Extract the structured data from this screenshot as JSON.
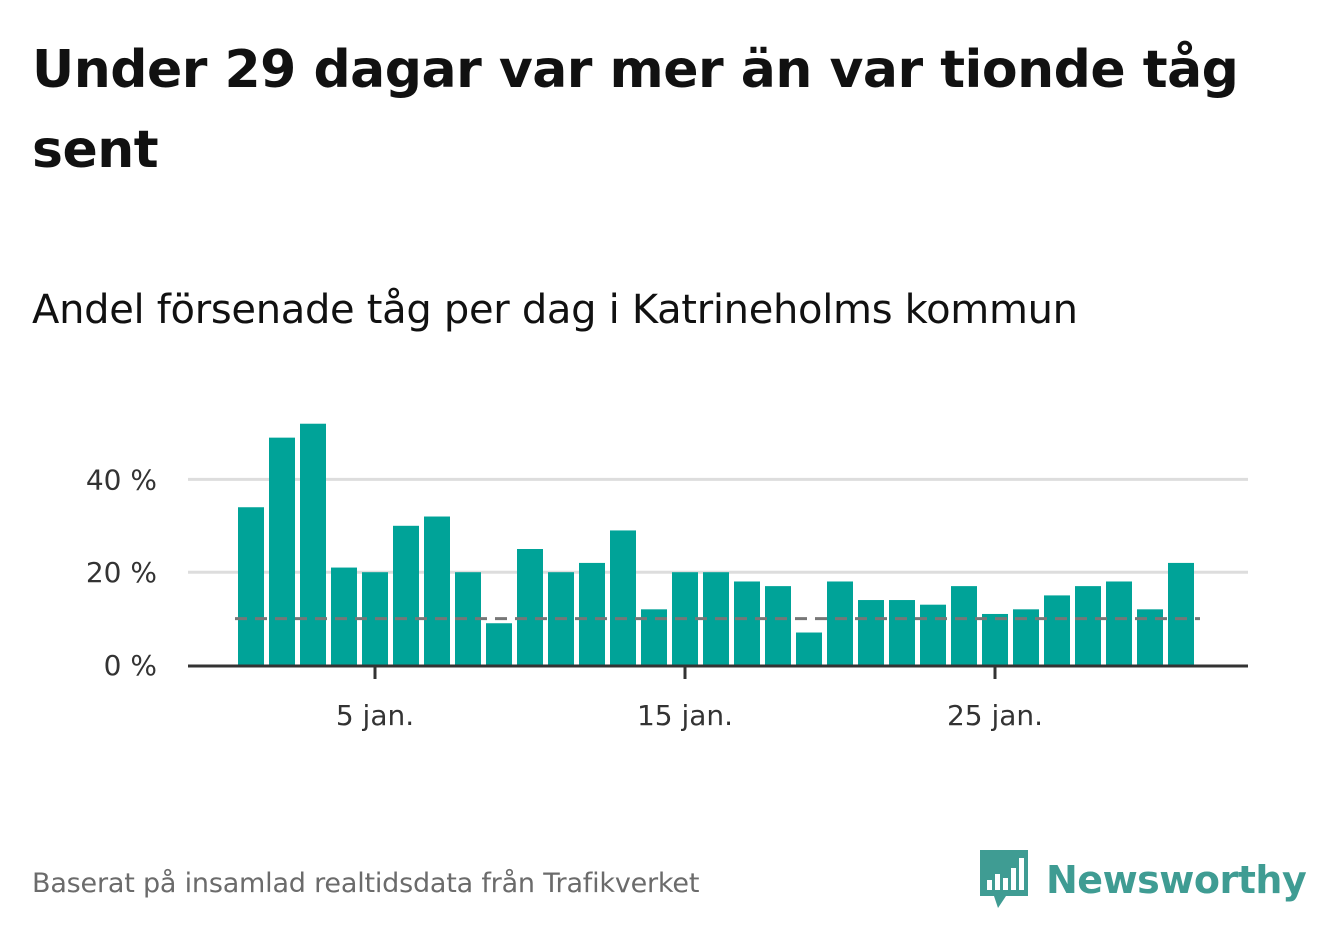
{
  "title": "Under 29 dagar var mer än var tionde tåg sent",
  "subtitle": "Andel försenade tåg per dag i Katrineholms kommun",
  "source": "Baserat på insamlad realtidsdata från Trafikverket",
  "brand": {
    "name": "Newsworthy",
    "color": "#3f9c93",
    "icon": "newsworthy-logo-icon"
  },
  "colors": {
    "bar": "#00a398",
    "reference_line": "#777777",
    "grid": "#dddddd",
    "axis": "#333333"
  },
  "chart_data": {
    "type": "bar",
    "x": [
      1,
      2,
      3,
      4,
      5,
      6,
      7,
      8,
      9,
      10,
      11,
      12,
      13,
      14,
      15,
      16,
      17,
      18,
      19,
      20,
      21,
      22,
      23,
      24,
      25,
      26,
      27,
      28,
      29,
      30,
      31
    ],
    "values": [
      34,
      49,
      52,
      21,
      20,
      30,
      32,
      20,
      9,
      25,
      20,
      22,
      29,
      12,
      20,
      20,
      18,
      17,
      7,
      18,
      14,
      14,
      13,
      17,
      11,
      12,
      15,
      17,
      18,
      12,
      22
    ],
    "ylim": [
      0,
      55
    ],
    "yticks": [
      {
        "value": 0,
        "label": "0 %"
      },
      {
        "value": 20,
        "label": "20 %"
      },
      {
        "value": 40,
        "label": "40 %"
      }
    ],
    "xticks": [
      {
        "value": 5,
        "label": "5 jan."
      },
      {
        "value": 15,
        "label": "15 jan."
      },
      {
        "value": 25,
        "label": "25 jan."
      }
    ],
    "reference_line": {
      "value": 10,
      "style": "dashed"
    },
    "grid": true,
    "legend": "none"
  }
}
